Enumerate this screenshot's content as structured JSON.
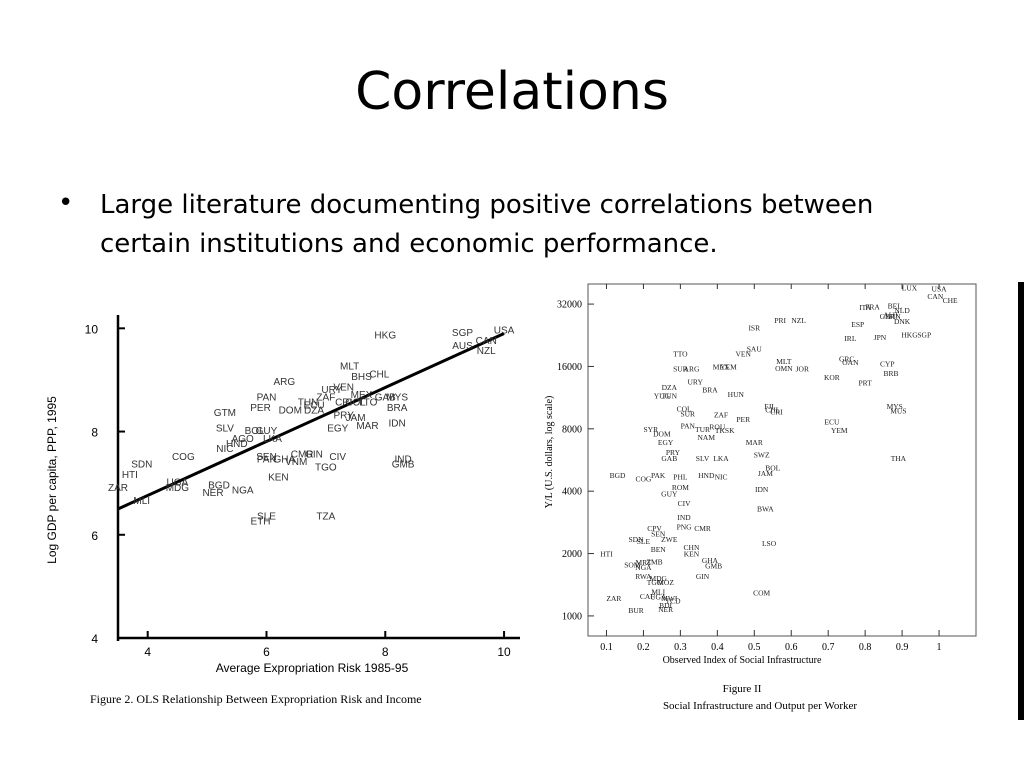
{
  "slide": {
    "title": "Correlations",
    "bullet": "Large literature documenting positive correlations between certain institutions and economic performance."
  },
  "chart_data": [
    {
      "type": "scatter",
      "caption": "Figure 2. OLS Relationship Between Expropriation Risk and Income",
      "xlabel": "Average Expropriation Risk 1985-95",
      "ylabel": "Log GDP per capita, PPP, 1995",
      "xlim": [
        3.5,
        10.1
      ],
      "ylim": [
        4,
        10.2
      ],
      "x_ticks": [
        "4",
        "6",
        "8",
        "10"
      ],
      "y_ticks": [
        "4",
        "6",
        "8",
        "10"
      ],
      "fit_line": [
        [
          3.5,
          6.5
        ],
        [
          10.0,
          9.9
        ]
      ],
      "points": [
        {
          "label": "HKG",
          "x": 8.0,
          "y": 9.8
        },
        {
          "label": "SGP",
          "x": 9.3,
          "y": 9.85
        },
        {
          "label": "USA",
          "x": 10.0,
          "y": 9.9
        },
        {
          "label": "AUS",
          "x": 9.3,
          "y": 9.6
        },
        {
          "label": "CAN",
          "x": 9.7,
          "y": 9.7
        },
        {
          "label": "NZL",
          "x": 9.7,
          "y": 9.5
        },
        {
          "label": "MLT",
          "x": 7.4,
          "y": 9.2
        },
        {
          "label": "BHS",
          "x": 7.6,
          "y": 9.0
        },
        {
          "label": "CHL",
          "x": 7.9,
          "y": 9.05
        },
        {
          "label": "ARG",
          "x": 6.3,
          "y": 8.9
        },
        {
          "label": "URY",
          "x": 7.1,
          "y": 8.75
        },
        {
          "label": "VEN",
          "x": 7.3,
          "y": 8.8
        },
        {
          "label": "ZAF",
          "x": 7.0,
          "y": 8.6
        },
        {
          "label": "MEX",
          "x": 7.6,
          "y": 8.65
        },
        {
          "label": "GAB",
          "x": 8.0,
          "y": 8.6
        },
        {
          "label": "MYS",
          "x": 8.2,
          "y": 8.6
        },
        {
          "label": "CRI",
          "x": 7.3,
          "y": 8.5
        },
        {
          "label": "COL",
          "x": 7.5,
          "y": 8.5
        },
        {
          "label": "TTO",
          "x": 7.7,
          "y": 8.5
        },
        {
          "label": "BRA",
          "x": 8.2,
          "y": 8.4
        },
        {
          "label": "PAN",
          "x": 6.0,
          "y": 8.6
        },
        {
          "label": "GTM",
          "x": 5.3,
          "y": 8.3
        },
        {
          "label": "PER",
          "x": 5.9,
          "y": 8.4
        },
        {
          "label": "DOM",
          "x": 6.4,
          "y": 8.35
        },
        {
          "label": "TUN",
          "x": 6.7,
          "y": 8.5
        },
        {
          "label": "ECU",
          "x": 6.8,
          "y": 8.45
        },
        {
          "label": "DZA",
          "x": 6.8,
          "y": 8.35
        },
        {
          "label": "PRY",
          "x": 7.3,
          "y": 8.25
        },
        {
          "label": "JAM",
          "x": 7.5,
          "y": 8.2
        },
        {
          "label": "EGY",
          "x": 7.2,
          "y": 8.0
        },
        {
          "label": "MAR",
          "x": 7.7,
          "y": 8.05
        },
        {
          "label": "IDN",
          "x": 8.2,
          "y": 8.1
        },
        {
          "label": "SLV",
          "x": 5.3,
          "y": 8.0
        },
        {
          "label": "BOL",
          "x": 5.8,
          "y": 7.95
        },
        {
          "label": "GUY",
          "x": 6.0,
          "y": 7.95
        },
        {
          "label": "AGO",
          "x": 5.6,
          "y": 7.8
        },
        {
          "label": "HND",
          "x": 5.5,
          "y": 7.7
        },
        {
          "label": "LKA",
          "x": 6.1,
          "y": 7.8
        },
        {
          "label": "NIC",
          "x": 5.3,
          "y": 7.6
        },
        {
          "label": "COG",
          "x": 4.6,
          "y": 7.45
        },
        {
          "label": "SEN",
          "x": 6.0,
          "y": 7.45
        },
        {
          "label": "PAK",
          "x": 6.0,
          "y": 7.4
        },
        {
          "label": "GHA",
          "x": 6.3,
          "y": 7.4
        },
        {
          "label": "CMR",
          "x": 6.6,
          "y": 7.5
        },
        {
          "label": "GIN",
          "x": 6.8,
          "y": 7.5
        },
        {
          "label": "VNM",
          "x": 6.5,
          "y": 7.35
        },
        {
          "label": "CIV",
          "x": 7.2,
          "y": 7.45
        },
        {
          "label": "TGO",
          "x": 7.0,
          "y": 7.25
        },
        {
          "label": "IND",
          "x": 8.3,
          "y": 7.4
        },
        {
          "label": "GMB",
          "x": 8.3,
          "y": 7.3
        },
        {
          "label": "SDN",
          "x": 3.9,
          "y": 7.3
        },
        {
          "label": "HTI",
          "x": 3.7,
          "y": 7.1
        },
        {
          "label": "KEN",
          "x": 6.2,
          "y": 7.05
        },
        {
          "label": "ZAR",
          "x": 3.5,
          "y": 6.85
        },
        {
          "label": "UGA",
          "x": 4.5,
          "y": 6.95
        },
        {
          "label": "MDG",
          "x": 4.5,
          "y": 6.85
        },
        {
          "label": "BGD",
          "x": 5.2,
          "y": 6.9
        },
        {
          "label": "NER",
          "x": 5.1,
          "y": 6.75
        },
        {
          "label": "NGA",
          "x": 5.6,
          "y": 6.8
        },
        {
          "label": "MLI",
          "x": 3.9,
          "y": 6.6
        },
        {
          "label": "SLE",
          "x": 6.0,
          "y": 6.3
        },
        {
          "label": "ETH",
          "x": 5.9,
          "y": 6.2
        },
        {
          "label": "TZA",
          "x": 7.0,
          "y": 6.3
        }
      ]
    },
    {
      "type": "scatter",
      "caption_title": "Figure II",
      "caption_sub": "Social Infrastructure and Output per Worker",
      "xlabel": "Observed Index of Social Infrastructure",
      "ylabel": "Y/L (U.S. dollars, log scale)",
      "log_y": true,
      "xlim": [
        0.05,
        1.1
      ],
      "ylim": [
        800,
        40000
      ],
      "x_ticks": [
        "0.1",
        "0.2",
        "0.3",
        "0.4",
        "0.5",
        "0.6",
        "0.7",
        "0.8",
        "0.9",
        "1"
      ],
      "y_ticks": [
        "1000",
        "2000",
        "4000",
        "8000",
        "16000",
        "32000"
      ],
      "points": [
        {
          "label": "LUX",
          "x": 0.92,
          "y": 38500
        },
        {
          "label": "USA",
          "x": 1.0,
          "y": 38000
        },
        {
          "label": "CAN",
          "x": 0.99,
          "y": 35000
        },
        {
          "label": "CHE",
          "x": 1.03,
          "y": 33500
        },
        {
          "label": "ITA",
          "x": 0.8,
          "y": 31000
        },
        {
          "label": "FRA",
          "x": 0.82,
          "y": 31200
        },
        {
          "label": "BEL",
          "x": 0.88,
          "y": 31500
        },
        {
          "label": "NLD",
          "x": 0.9,
          "y": 30000
        },
        {
          "label": "AUT",
          "x": 0.87,
          "y": 28500
        },
        {
          "label": "GBR",
          "x": 0.86,
          "y": 28000
        },
        {
          "label": "FIN",
          "x": 0.88,
          "y": 28000
        },
        {
          "label": "DNK",
          "x": 0.9,
          "y": 26500
        },
        {
          "label": "PRI",
          "x": 0.57,
          "y": 26800
        },
        {
          "label": "NZL",
          "x": 0.62,
          "y": 26800
        },
        {
          "label": "ISR",
          "x": 0.5,
          "y": 24700
        },
        {
          "label": "ESP",
          "x": 0.78,
          "y": 25600
        },
        {
          "label": "JPN",
          "x": 0.84,
          "y": 22200
        },
        {
          "label": "HKG",
          "x": 0.92,
          "y": 22800
        },
        {
          "label": "SGP",
          "x": 0.96,
          "y": 22800
        },
        {
          "label": "IRL",
          "x": 0.76,
          "y": 22000
        },
        {
          "label": "SAU",
          "x": 0.5,
          "y": 19500
        },
        {
          "label": "VEN",
          "x": 0.47,
          "y": 18500
        },
        {
          "label": "GRC",
          "x": 0.75,
          "y": 17500
        },
        {
          "label": "OAN",
          "x": 0.76,
          "y": 16800
        },
        {
          "label": "CYP",
          "x": 0.86,
          "y": 16500
        },
        {
          "label": "BRB",
          "x": 0.87,
          "y": 14900
        },
        {
          "label": "MLT",
          "x": 0.58,
          "y": 17000
        },
        {
          "label": "OMN",
          "x": 0.58,
          "y": 15700
        },
        {
          "label": "JOR",
          "x": 0.63,
          "y": 15600
        },
        {
          "label": "KOR",
          "x": 0.71,
          "y": 14200
        },
        {
          "label": "PRT",
          "x": 0.8,
          "y": 13400
        },
        {
          "label": "TTO",
          "x": 0.3,
          "y": 18500
        },
        {
          "label": "SUR",
          "x": 0.3,
          "y": 15600
        },
        {
          "label": "ARG",
          "x": 0.33,
          "y": 15600
        },
        {
          "label": "MEX",
          "x": 0.41,
          "y": 16000
        },
        {
          "label": "YEM",
          "x": 0.43,
          "y": 16000
        },
        {
          "label": "URY",
          "x": 0.34,
          "y": 13500
        },
        {
          "label": "DZA",
          "x": 0.27,
          "y": 12700
        },
        {
          "label": "BRA",
          "x": 0.38,
          "y": 12400
        },
        {
          "label": "HUN",
          "x": 0.45,
          "y": 11800
        },
        {
          "label": "YUG",
          "x": 0.25,
          "y": 11600
        },
        {
          "label": "TUN",
          "x": 0.27,
          "y": 11600
        },
        {
          "label": "FJI",
          "x": 0.54,
          "y": 10300
        },
        {
          "label": "CHL",
          "x": 0.55,
          "y": 9900
        },
        {
          "label": "CRI",
          "x": 0.56,
          "y": 9700
        },
        {
          "label": "COL",
          "x": 0.31,
          "y": 10000
        },
        {
          "label": "SUR",
          "x": 0.32,
          "y": 9500
        },
        {
          "label": "ZAF",
          "x": 0.41,
          "y": 9400
        },
        {
          "label": "ECU",
          "x": 0.71,
          "y": 8700
        },
        {
          "label": "MYS",
          "x": 0.88,
          "y": 10300
        },
        {
          "label": "MUS",
          "x": 0.89,
          "y": 9800
        },
        {
          "label": "PER",
          "x": 0.47,
          "y": 8900
        },
        {
          "label": "PAN",
          "x": 0.32,
          "y": 8300
        },
        {
          "label": "TUR",
          "x": 0.36,
          "y": 8000
        },
        {
          "label": "SYR",
          "x": 0.22,
          "y": 8000
        },
        {
          "label": "ROU",
          "x": 0.4,
          "y": 8200
        },
        {
          "label": "DOM",
          "x": 0.25,
          "y": 7600
        },
        {
          "label": "TKSK",
          "x": 0.42,
          "y": 7900
        },
        {
          "label": "YEM",
          "x": 0.73,
          "y": 7900
        },
        {
          "label": "NAM",
          "x": 0.37,
          "y": 7300
        },
        {
          "label": "EGY",
          "x": 0.26,
          "y": 6900
        },
        {
          "label": "MAR",
          "x": 0.5,
          "y": 6900
        },
        {
          "label": "PRY",
          "x": 0.28,
          "y": 6200
        },
        {
          "label": "GAB",
          "x": 0.27,
          "y": 5800
        },
        {
          "label": "SWZ",
          "x": 0.52,
          "y": 6000
        },
        {
          "label": "SLV",
          "x": 0.36,
          "y": 5800
        },
        {
          "label": "LKA",
          "x": 0.41,
          "y": 5800
        },
        {
          "label": "THA",
          "x": 0.89,
          "y": 5800
        },
        {
          "label": "BOL",
          "x": 0.55,
          "y": 5200
        },
        {
          "label": "JAM",
          "x": 0.53,
          "y": 4900
        },
        {
          "label": "BGD",
          "x": 0.13,
          "y": 4800
        },
        {
          "label": "COG",
          "x": 0.2,
          "y": 4600
        },
        {
          "label": "PAK",
          "x": 0.24,
          "y": 4800
        },
        {
          "label": "PHL",
          "x": 0.3,
          "y": 4700
        },
        {
          "label": "HND",
          "x": 0.37,
          "y": 4800
        },
        {
          "label": "NIC",
          "x": 0.41,
          "y": 4700
        },
        {
          "label": "ROM",
          "x": 0.3,
          "y": 4200
        },
        {
          "label": "IDN",
          "x": 0.52,
          "y": 4100
        },
        {
          "label": "GUY",
          "x": 0.27,
          "y": 3900
        },
        {
          "label": "CIV",
          "x": 0.31,
          "y": 3500
        },
        {
          "label": "BWA",
          "x": 0.53,
          "y": 3300
        },
        {
          "label": "IND",
          "x": 0.31,
          "y": 3000
        },
        {
          "label": "PNG",
          "x": 0.31,
          "y": 2700
        },
        {
          "label": "CMR",
          "x": 0.36,
          "y": 2650
        },
        {
          "label": "CPV",
          "x": 0.23,
          "y": 2650
        },
        {
          "label": "SEN",
          "x": 0.24,
          "y": 2500
        },
        {
          "label": "SDN",
          "x": 0.18,
          "y": 2350
        },
        {
          "label": "SLE",
          "x": 0.2,
          "y": 2300
        },
        {
          "label": "ZWE",
          "x": 0.27,
          "y": 2350
        },
        {
          "label": "LSO",
          "x": 0.54,
          "y": 2250
        },
        {
          "label": "BEN",
          "x": 0.24,
          "y": 2100
        },
        {
          "label": "CHN",
          "x": 0.33,
          "y": 2150
        },
        {
          "label": "KEN",
          "x": 0.33,
          "y": 2000
        },
        {
          "label": "HTI",
          "x": 0.1,
          "y": 2000
        },
        {
          "label": "SOM",
          "x": 0.17,
          "y": 1770
        },
        {
          "label": "MRT",
          "x": 0.2,
          "y": 1820
        },
        {
          "label": "ZMB",
          "x": 0.23,
          "y": 1830
        },
        {
          "label": "NGA",
          "x": 0.2,
          "y": 1720
        },
        {
          "label": "GHA",
          "x": 0.38,
          "y": 1860
        },
        {
          "label": "GMB",
          "x": 0.39,
          "y": 1750
        },
        {
          "label": "RWA",
          "x": 0.2,
          "y": 1560
        },
        {
          "label": "MDG",
          "x": 0.24,
          "y": 1520
        },
        {
          "label": "TGO",
          "x": 0.23,
          "y": 1460
        },
        {
          "label": "MOZ",
          "x": 0.26,
          "y": 1460
        },
        {
          "label": "GIN",
          "x": 0.36,
          "y": 1560
        },
        {
          "label": "MLI",
          "x": 0.24,
          "y": 1310
        },
        {
          "label": "CAF",
          "x": 0.21,
          "y": 1250
        },
        {
          "label": "UGA",
          "x": 0.24,
          "y": 1240
        },
        {
          "label": "MWI",
          "x": 0.27,
          "y": 1220
        },
        {
          "label": "COM",
          "x": 0.52,
          "y": 1300
        },
        {
          "label": "ZAR",
          "x": 0.12,
          "y": 1220
        },
        {
          "label": "BUR",
          "x": 0.18,
          "y": 1070
        },
        {
          "label": "NER",
          "x": 0.26,
          "y": 1080
        },
        {
          "label": "TCD",
          "x": 0.28,
          "y": 1190
        },
        {
          "label": "BDI",
          "x": 0.26,
          "y": 1130
        }
      ]
    }
  ]
}
